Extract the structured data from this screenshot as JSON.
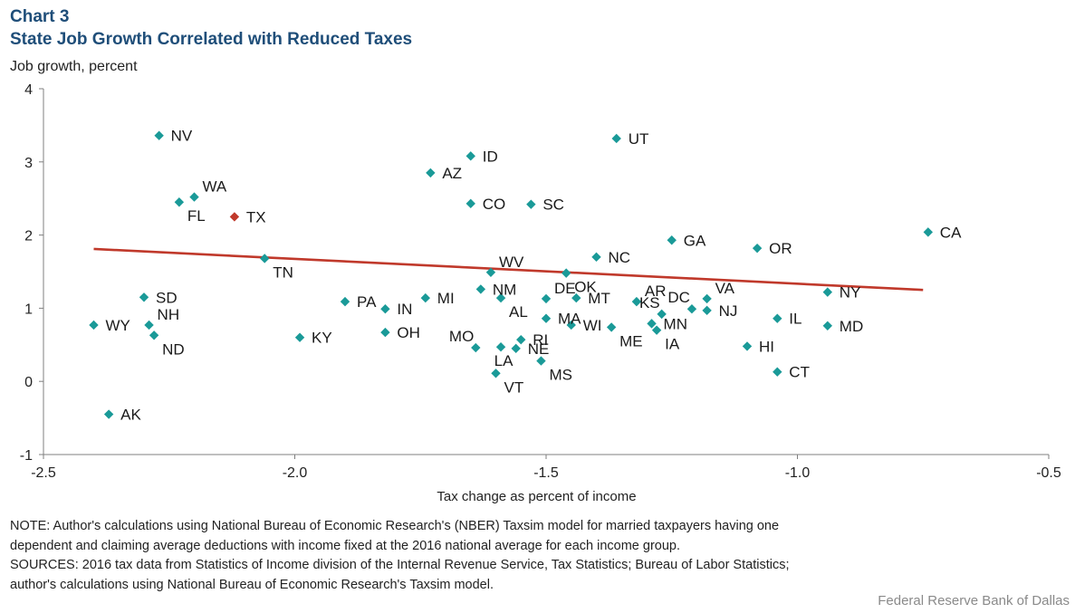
{
  "header": {
    "chart_number": "Chart 3",
    "title": "State Job Growth Correlated with Reduced Taxes"
  },
  "notes": {
    "note_line1": "NOTE: Author's calculations using National Bureau of Economic Research's (NBER) Taxsim model for married taxpayers having one",
    "note_line2": "dependent and claiming average deductions with income fixed at the 2016 national average for each income group.",
    "sources_line1": "SOURCES: 2016 tax data from Statistics of Income division of the Internal Revenue Service, Tax Statistics; Bureau of Labor Statistics;",
    "sources_line2": "author's calculations using National Bureau of Economic Research's Taxsim model."
  },
  "credit": "Federal Reserve Bank of Dallas",
  "colors": {
    "title": "#1f4e79",
    "marker": "#1a9a98",
    "highlight": "#c0392b",
    "trendline": "#c0392b"
  },
  "chart_data": {
    "type": "scatter",
    "xlabel": "Tax change as percent of income",
    "ylabel": "Job growth, percent",
    "xlim": [
      -2.5,
      -0.5
    ],
    "ylim": [
      -1,
      4
    ],
    "xticks": [
      -2.5,
      -2.0,
      -1.5,
      -1.0,
      -0.5
    ],
    "xtick_labels": [
      "-2.5",
      "-2.0",
      "-1.5",
      "-1.0",
      "-0.5"
    ],
    "yticks": [
      -1,
      0,
      1,
      2,
      3,
      4
    ],
    "ytick_labels": [
      "-1",
      "0",
      "1",
      "2",
      "3",
      "4"
    ],
    "grid": false,
    "highlight": "TX",
    "trendline": {
      "x": [
        -2.4,
        -0.75
      ],
      "y": [
        1.81,
        1.25
      ]
    },
    "points": [
      {
        "label": "NV",
        "x": -2.27,
        "y": 3.36,
        "label_pos": "right"
      },
      {
        "label": "UT",
        "x": -1.36,
        "y": 3.32,
        "label_pos": "right"
      },
      {
        "label": "ID",
        "x": -1.65,
        "y": 3.08,
        "label_pos": "right"
      },
      {
        "label": "AZ",
        "x": -1.73,
        "y": 2.85,
        "label_pos": "right"
      },
      {
        "label": "WA",
        "x": -2.2,
        "y": 2.52,
        "label_pos": "upright"
      },
      {
        "label": "FL",
        "x": -2.23,
        "y": 2.45,
        "label_pos": "downright"
      },
      {
        "label": "CO",
        "x": -1.65,
        "y": 2.43,
        "label_pos": "right"
      },
      {
        "label": "SC",
        "x": -1.53,
        "y": 2.42,
        "label_pos": "right"
      },
      {
        "label": "TX",
        "x": -2.12,
        "y": 2.25,
        "label_pos": "right"
      },
      {
        "label": "CA",
        "x": -0.74,
        "y": 2.04,
        "label_pos": "right"
      },
      {
        "label": "GA",
        "x": -1.25,
        "y": 1.93,
        "label_pos": "right"
      },
      {
        "label": "OR",
        "x": -1.08,
        "y": 1.82,
        "label_pos": "right"
      },
      {
        "label": "NC",
        "x": -1.4,
        "y": 1.7,
        "label_pos": "right"
      },
      {
        "label": "TN",
        "x": -2.06,
        "y": 1.68,
        "label_pos": "downright"
      },
      {
        "label": "WV",
        "x": -1.61,
        "y": 1.49,
        "label_pos": "upright"
      },
      {
        "label": "OK",
        "x": -1.46,
        "y": 1.48,
        "label_pos": "downright"
      },
      {
        "label": "NM",
        "x": -1.63,
        "y": 1.26,
        "label_pos": "right"
      },
      {
        "label": "NY",
        "x": -0.94,
        "y": 1.22,
        "label_pos": "right"
      },
      {
        "label": "SD",
        "x": -2.3,
        "y": 1.15,
        "label_pos": "right"
      },
      {
        "label": "AL",
        "x": -1.59,
        "y": 1.14,
        "label_pos": "downright"
      },
      {
        "label": "MI",
        "x": -1.74,
        "y": 1.14,
        "label_pos": "right"
      },
      {
        "label": "MT",
        "x": -1.44,
        "y": 1.14,
        "label_pos": "right"
      },
      {
        "label": "DE",
        "x": -1.5,
        "y": 1.13,
        "label_pos": "upright"
      },
      {
        "label": "VA",
        "x": -1.18,
        "y": 1.13,
        "label_pos": "upright"
      },
      {
        "label": "PA",
        "x": -1.9,
        "y": 1.09,
        "label_pos": "right"
      },
      {
        "label": "AR",
        "x": -1.32,
        "y": 1.09,
        "label_pos": "upright"
      },
      {
        "label": "IN",
        "x": -1.82,
        "y": 0.99,
        "label_pos": "right"
      },
      {
        "label": "DC",
        "x": -1.21,
        "y": 0.99,
        "label_pos": "upleft"
      },
      {
        "label": "NJ",
        "x": -1.18,
        "y": 0.97,
        "label_pos": "right"
      },
      {
        "label": "KS",
        "x": -1.27,
        "y": 0.92,
        "label_pos": "upleft"
      },
      {
        "label": "MA",
        "x": -1.5,
        "y": 0.86,
        "label_pos": "right"
      },
      {
        "label": "IL",
        "x": -1.04,
        "y": 0.86,
        "label_pos": "right"
      },
      {
        "label": "MN",
        "x": -1.29,
        "y": 0.79,
        "label_pos": "right"
      },
      {
        "label": "WY",
        "x": -2.4,
        "y": 0.77,
        "label_pos": "right"
      },
      {
        "label": "NH",
        "x": -2.29,
        "y": 0.77,
        "label_pos": "upright"
      },
      {
        "label": "WI",
        "x": -1.45,
        "y": 0.77,
        "label_pos": "right"
      },
      {
        "label": "MD",
        "x": -0.94,
        "y": 0.76,
        "label_pos": "right"
      },
      {
        "label": "ME",
        "x": -1.37,
        "y": 0.74,
        "label_pos": "downright"
      },
      {
        "label": "IA",
        "x": -1.28,
        "y": 0.7,
        "label_pos": "downright"
      },
      {
        "label": "OH",
        "x": -1.82,
        "y": 0.67,
        "label_pos": "right"
      },
      {
        "label": "ND",
        "x": -2.28,
        "y": 0.63,
        "label_pos": "downright"
      },
      {
        "label": "KY",
        "x": -1.99,
        "y": 0.6,
        "label_pos": "right"
      },
      {
        "label": "RI",
        "x": -1.55,
        "y": 0.57,
        "label_pos": "right"
      },
      {
        "label": "HI",
        "x": -1.1,
        "y": 0.48,
        "label_pos": "right"
      },
      {
        "label": "LA",
        "x": -1.59,
        "y": 0.47,
        "label_pos": "downleft"
      },
      {
        "label": "MO",
        "x": -1.64,
        "y": 0.46,
        "label_pos": "upleft"
      },
      {
        "label": "NE",
        "x": -1.56,
        "y": 0.45,
        "label_pos": "right"
      },
      {
        "label": "MS",
        "x": -1.51,
        "y": 0.28,
        "label_pos": "downright"
      },
      {
        "label": "CT",
        "x": -1.04,
        "y": 0.13,
        "label_pos": "right"
      },
      {
        "label": "VT",
        "x": -1.6,
        "y": 0.11,
        "label_pos": "downright"
      },
      {
        "label": "AK",
        "x": -2.37,
        "y": -0.45,
        "label_pos": "right"
      }
    ]
  }
}
